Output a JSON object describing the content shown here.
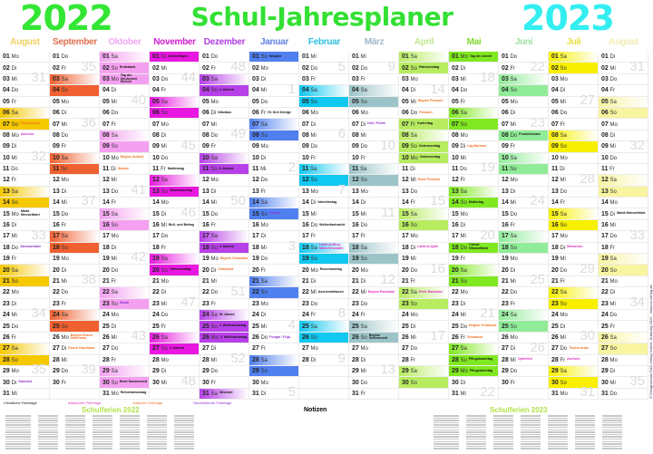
{
  "header": {
    "year_left": "2022",
    "title": "Schul-Jahresplaner",
    "year_right": "2023",
    "color_left": "#33e633",
    "color_right": "#33eef0"
  },
  "weekdays": [
    "Mo",
    "Di",
    "Mi",
    "Do",
    "Fr",
    "Sa",
    "So"
  ],
  "event_colors": {
    "c": "#111111",
    "i": "#e030c0",
    "j": "#f07020",
    "h": "#9030d0"
  },
  "months": [
    {
      "name": "August",
      "year": 2022,
      "m": 7,
      "color": "#f5c800",
      "head": "#f0d060",
      "events": {
        "7": [
          "Tischa beAw",
          "j"
        ],
        "8": [
          "Aschura",
          "i"
        ],
        "15": [
          "Mariä Himmelfahrt",
          "c"
        ],
        "18": [
          "Janmashtami",
          "h"
        ],
        "30": [
          "Ganesha",
          "h"
        ]
      }
    },
    {
      "name": "September",
      "year": 2022,
      "m": 8,
      "color": "#f06030",
      "head": "#e07050",
      "events": {
        "26": [
          "Beginn Rosch Haschana",
          "j"
        ],
        "27": [
          "Rosch Haschana",
          "j"
        ]
      }
    },
    {
      "name": "Oktober",
      "year": 2022,
      "m": 9,
      "color": "#f4a0f0",
      "head": "#f0a8f0",
      "events": {
        "2": [
          "Erntedank",
          "c"
        ],
        "3": [
          "Tag der Deutschen Einheit",
          "c",
          1
        ],
        "10": [
          "Beginn Sukkot",
          "j"
        ],
        "11": [
          "Sukkot",
          "j"
        ],
        "23": [
          "Diwali",
          "h"
        ],
        "30": [
          "Ende Sommerzeit",
          "c"
        ],
        "31": [
          "Reformationstag",
          "c"
        ]
      }
    },
    {
      "name": "November",
      "year": 2022,
      "m": 10,
      "color": "#e818e0",
      "head": "#d020d0",
      "events": {
        "1": [
          "Allerheiligen",
          "c",
          1
        ],
        "11": [
          "Martinstag",
          "c"
        ],
        "13": [
          "Volkstrauertag",
          "c"
        ],
        "16": [
          "Buß- und Bettag",
          "c"
        ],
        "20": [
          "Totensonntag",
          "c"
        ],
        "27": [
          "1. Advent",
          "c"
        ]
      }
    },
    {
      "name": "Dezember",
      "year": 2022,
      "m": 11,
      "color": "#b840e8",
      "head": "#b040e0",
      "events": {
        "4": [
          "2. Advent",
          "c"
        ],
        "6": [
          "Nikolaus",
          "c"
        ],
        "11": [
          "3. Advent",
          "c"
        ],
        "18": [
          "4. Advent",
          "c"
        ],
        "19": [
          "Beginn Chanukka",
          "j"
        ],
        "20": [
          "Chanukka",
          "j"
        ],
        "24": [
          "Hl. Abend",
          "c"
        ],
        "25": [
          "1. Weihnachtstag",
          "c",
          1
        ],
        "26": [
          "2. Weihnachtstag",
          "c",
          1
        ],
        "31": [
          "Silvester",
          "c"
        ]
      }
    },
    {
      "name": "Januar",
      "year": 2023,
      "m": 0,
      "color": "#5080f0",
      "head": "#6080e0",
      "events": {
        "1": [
          "Neujahr",
          "c",
          1
        ],
        "6": [
          "Hl. Drei Könige",
          "c"
        ],
        "15": [
          "Pongal",
          "h"
        ],
        "26": [
          "Pongal / Puja",
          "h"
        ]
      }
    },
    {
      "name": "Februar",
      "year": 2023,
      "m": 1,
      "color": "#10c8f0",
      "head": "#30c0e0",
      "events": {
        "14": [
          "Valentinstag",
          "c"
        ],
        "16": [
          "Weiberfastnacht",
          "c"
        ],
        "18": [
          "Lailat al-Miraj · Maha Shivaratri",
          "i"
        ],
        "20": [
          "Rosenmontag",
          "c"
        ],
        "22": [
          "Aschermittwoch",
          "c"
        ]
      }
    },
    {
      "name": "März",
      "year": 2023,
      "m": 2,
      "color": "#9cc4c8",
      "head": "#a0b8c8",
      "events": {
        "7": [
          "Holi / Purim",
          "h"
        ],
        "22": [
          "Beginn Ramadan",
          "i"
        ],
        "26": [
          "Beginn Sommerzeit",
          "c"
        ]
      }
    },
    {
      "name": "April",
      "year": 2023,
      "m": 3,
      "color": "#b8ec60",
      "head": "#c0e890",
      "events": {
        "2": [
          "Palmsonntag",
          "c"
        ],
        "5": [
          "Beginn Pessach",
          "j"
        ],
        "6": [
          "Pessach",
          "j"
        ],
        "7": [
          "Karfreitag",
          "c",
          1
        ],
        "9": [
          "Ostersonntag",
          "c"
        ],
        "10": [
          "Ostermontag",
          "c",
          1
        ],
        "12": [
          "Ende Pessach",
          "j"
        ],
        "18": [
          "Lailat al-Qadr",
          "i"
        ],
        "22": [
          "Ende Ramadan",
          "i"
        ]
      }
    },
    {
      "name": "Mai",
      "year": 2023,
      "m": 4,
      "color": "#80e820",
      "head": "#80d830",
      "events": {
        "1": [
          "Tag der Arbeit",
          "c",
          1
        ],
        "9": [
          "Lag BaOmer",
          "j"
        ],
        "14": [
          "Muttertag",
          "c"
        ],
        "18": [
          "Christi Himmelfahrt",
          "c",
          1
        ],
        "25": [
          "Beginn Schawuot",
          "j"
        ],
        "26": [
          "Schawuot",
          "j"
        ],
        "28": [
          "Pfingstsonntag",
          "c"
        ],
        "29": [
          "Pfingstmontag",
          "c",
          1
        ]
      }
    },
    {
      "name": "Juni",
      "year": 2023,
      "m": 5,
      "color": "#90ec98",
      "head": "#a0e0a0",
      "events": {
        "8": [
          "Fronleichnam",
          "c",
          1
        ],
        "28": [
          "Opferfest",
          "i"
        ]
      }
    },
    {
      "name": "Juli",
      "year": 2023,
      "m": 6,
      "color": "#f8f000",
      "head": "#e8e040",
      "events": {
        "18": [
          "Muharram",
          "i"
        ],
        "27": [
          "Tischa beAw",
          "j"
        ],
        "28": [
          "Aschura",
          "i"
        ]
      }
    },
    {
      "name": "August",
      "year": 2023,
      "m": 7,
      "color": "#f8f4a0",
      "head": "#f0ecb0",
      "events": {
        "15": [
          "Mariä Himmelfahrt",
          "c"
        ]
      }
    }
  ],
  "legend": [
    {
      "label": "Christliche Feiertage",
      "color": "#111111"
    },
    {
      "label": "Islamische Feiertage",
      "color": "#e030c0"
    },
    {
      "label": "Jüdische Feiertage",
      "color": "#f07020"
    },
    {
      "label": "Hinduistische Feiertage",
      "color": "#9030d0"
    }
  ],
  "footer": {
    "ferien_2022": "Schulferien 2022",
    "notes": "Notizen",
    "ferien_2023": "Schulferien 2023",
    "side": "© Designschutz E&Z-Verlag GmbH, Duisburg 2022 · www.ez-verlag.de"
  }
}
